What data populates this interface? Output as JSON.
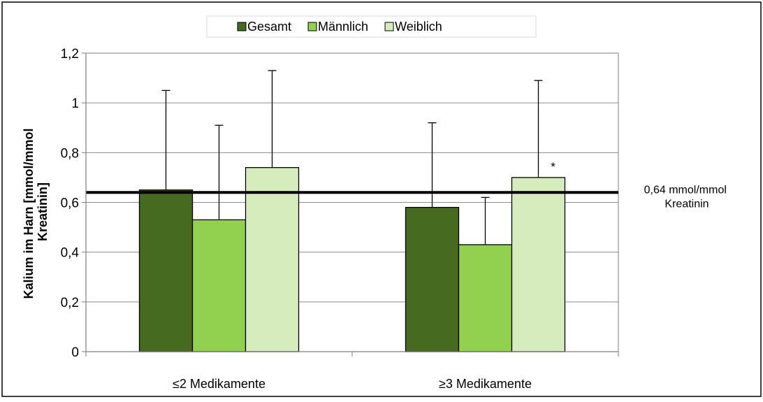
{
  "chart_data": {
    "type": "bar",
    "categories": [
      "≤2 Medikamente",
      "≥3 Medikamente"
    ],
    "series": [
      {
        "name": "Gesamt",
        "color": "#456a20",
        "values": [
          0.65,
          0.58
        ],
        "error_upper": [
          1.05,
          0.92
        ]
      },
      {
        "name": "Männlich",
        "color": "#92d050",
        "values": [
          0.53,
          0.43
        ],
        "error_upper": [
          0.91,
          0.62
        ]
      },
      {
        "name": "Weiblich",
        "color": "#d6ecbd",
        "values": [
          0.74,
          0.7
        ],
        "error_upper": [
          1.13,
          1.09
        ]
      }
    ],
    "ylabel": "Kalium im Harn [mmol/mmol Kreatinin]",
    "ylabel_lines": [
      "Kalium im Harn [mmol/mmol",
      "Kreatinin]"
    ],
    "ylim": [
      0,
      1.2
    ],
    "yticks": [
      0,
      0.2,
      0.4,
      0.6,
      0.8,
      1.0,
      1.2
    ],
    "ytick_labels": [
      "0",
      "0,2",
      "0,4",
      "0,6",
      "0,8",
      "1",
      "1,2"
    ],
    "grid": true,
    "legend_position": "top-center",
    "reference_line": {
      "value": 0.64,
      "label_lines": [
        "0,64 mmol/mmol",
        "Kreatinin"
      ]
    },
    "annotations": [
      {
        "text": "*",
        "category_index": 1,
        "series_index": 2
      }
    ]
  }
}
